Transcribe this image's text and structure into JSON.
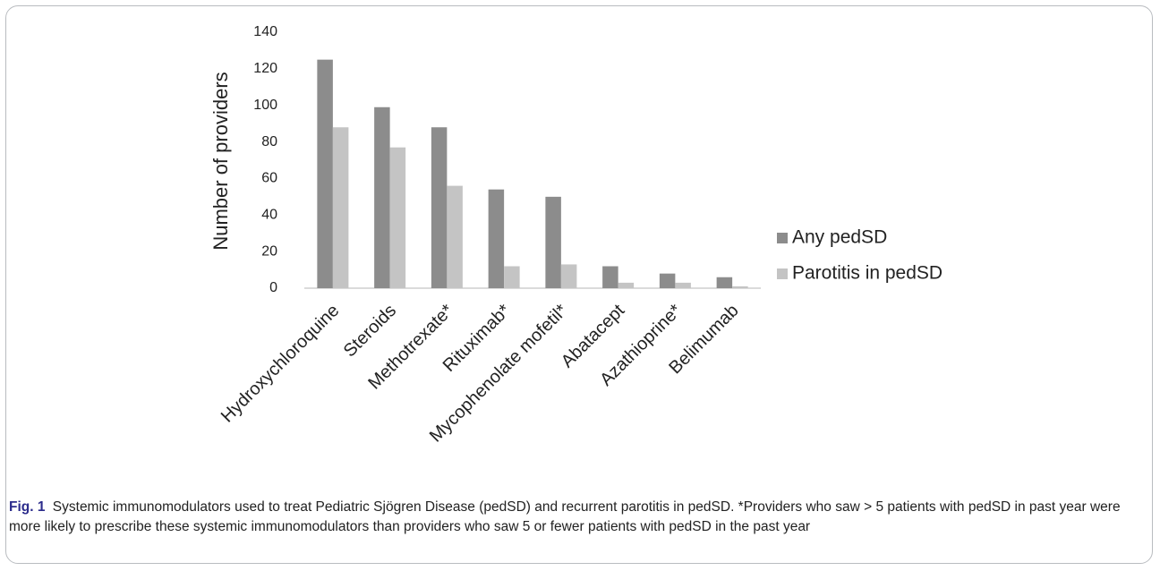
{
  "chart_data": {
    "type": "bar",
    "categories": [
      "Hydroxychloroquine",
      "Steroids",
      "Methotrexate*",
      "Rituximab*",
      "Mycophenolate mofetil*",
      "Abatacept",
      "Azathioprine*",
      "Belimumab"
    ],
    "series": [
      {
        "name": "Any pedSD",
        "values": [
          125,
          99,
          88,
          54,
          50,
          12,
          8,
          6
        ],
        "color": "#8c8c8c"
      },
      {
        "name": "Parotitis in pedSD",
        "values": [
          88,
          77,
          56,
          12,
          13,
          3,
          3,
          1
        ],
        "color": "#c4c4c4"
      }
    ],
    "title": "",
    "xlabel": "",
    "ylabel": "Number of providers",
    "ylim": [
      0,
      140
    ],
    "yticks": [
      0,
      20,
      40,
      60,
      80,
      100,
      120,
      140
    ],
    "grid": false,
    "legend_position": "right"
  },
  "caption": {
    "label": "Fig. 1",
    "text": "Systemic immunomodulators used to treat Pediatric Sjögren Disease (pedSD) and recurrent parotitis in pedSD. *Providers who saw > 5 patients with pedSD in past year were more likely to prescribe these systemic immunomodulators than providers who saw 5 or fewer patients with pedSD in the past year"
  }
}
